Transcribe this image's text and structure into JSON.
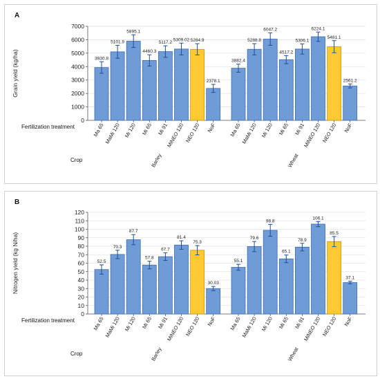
{
  "colors": {
    "bar": "#6f9bd6",
    "highlight": "#ffc933",
    "error": "#1f4f9a"
  },
  "chart_data": [
    {
      "id": "A",
      "panel_label": "A",
      "type": "bar",
      "ylabel": "Grain yield (kg/ha)",
      "ylim": [
        0,
        7000
      ],
      "yticks": [
        0,
        1000,
        2000,
        3000,
        4000,
        5000,
        6000,
        7000
      ],
      "grid": true,
      "row_labels": {
        "treatment": "Fertilization treatment",
        "crop": "Crop"
      },
      "groups": [
        {
          "name": "Barley",
          "categories": [
            "Ma 65",
            "MaMi 120",
            "Mi 120",
            "Mi 65",
            "Mi 91",
            "MiNEO 120",
            "NEO 120",
            "NoF"
          ],
          "values": [
            3930.8,
            5101.9,
            5895.1,
            4460.3,
            5117.2,
            5309.02,
            5284.9,
            2378.1
          ],
          "value_labels": [
            "3930.8",
            "5101.9",
            "5895.1",
            "4460.3",
            "5117.2",
            "5309.02",
            "5284.9",
            "2378.1"
          ],
          "errors": [
            430,
            480,
            470,
            420,
            430,
            440,
            420,
            300
          ],
          "highlight_index": 6
        },
        {
          "name": "Wheat",
          "categories": [
            "Ma 65",
            "MaMi 120",
            "Mi 120",
            "Mi 65",
            "Mi 91",
            "MiNEO 120",
            "NEO 120",
            "NoF"
          ],
          "values": [
            3882.4,
            5288.8,
            6047.2,
            4517.2,
            5306.1,
            6224.1,
            5481.1,
            2561.2
          ],
          "value_labels": [
            "3882.4",
            "5288.8",
            "6047.2",
            "4517.2",
            "5306.1",
            "6224.1",
            "5481.1",
            "2561.2"
          ],
          "errors": [
            300,
            420,
            460,
            300,
            380,
            350,
            450,
            150
          ],
          "highlight_index": 6
        }
      ]
    },
    {
      "id": "B",
      "panel_label": "B",
      "type": "bar",
      "ylabel": "Nitrogen yield (kg N/ha)",
      "ylim": [
        0,
        120
      ],
      "yticks": [
        0,
        10,
        20,
        30,
        40,
        50,
        60,
        70,
        80,
        90,
        100,
        110,
        120
      ],
      "grid": true,
      "row_labels": {
        "treatment": "Fertilization treatment",
        "crop": "Crop"
      },
      "groups": [
        {
          "name": "Barley",
          "categories": [
            "Ma 65",
            "MaMi 120",
            "Mi 120",
            "Mi 65",
            "Mi 91",
            "MiNEO 120",
            "NEO 120",
            "NoF"
          ],
          "values": [
            52.5,
            70.3,
            87.7,
            57.8,
            67.7,
            81.4,
            75.3,
            30.03
          ],
          "value_labels": [
            "52.5",
            "70.3",
            "87.7",
            "57.8",
            "67.7",
            "81.4",
            "75.3",
            "30.03"
          ],
          "errors": [
            5.5,
            5,
            6,
            4.5,
            4.5,
            5,
            5.5,
            2.5
          ],
          "highlight_index": 6
        },
        {
          "name": "Wheat",
          "categories": [
            "Ma 65",
            "MaMi 120",
            "Mi 120",
            "Mi 65",
            "Mi 91",
            "MiNEO 120",
            "NEO 120",
            "NoF"
          ],
          "values": [
            55.1,
            79.6,
            98.8,
            65.1,
            78.9,
            106.1,
            85.5,
            37.1
          ],
          "value_labels": [
            "55.1",
            "79.6",
            "98.8",
            "65.1",
            "78.9",
            "106.1",
            "85.5",
            "37.1"
          ],
          "errors": [
            3.5,
            6,
            7,
            4.5,
            4.5,
            3,
            6,
            1.5
          ],
          "highlight_index": 6
        }
      ]
    }
  ]
}
